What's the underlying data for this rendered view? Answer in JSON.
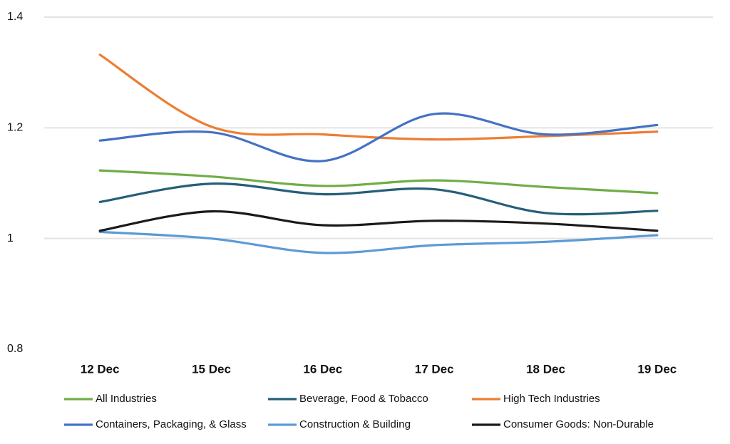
{
  "chart_data": {
    "type": "line",
    "categories": [
      "12 Dec",
      "15 Dec",
      "16 Dec",
      "17 Dec",
      "18 Dec",
      "19 Dec"
    ],
    "series": [
      {
        "name": "All Industries",
        "color": "#70ad47",
        "values": [
          1.123,
          1.112,
          1.095,
          1.105,
          1.093,
          1.082
        ]
      },
      {
        "name": "Beverage, Food & Tobacco",
        "color": "#255e79",
        "values": [
          1.066,
          1.099,
          1.08,
          1.089,
          1.046,
          1.05
        ]
      },
      {
        "name": "High Tech Industries",
        "color": "#ed7d31",
        "values": [
          1.332,
          1.202,
          1.188,
          1.179,
          1.185,
          1.193
        ]
      },
      {
        "name": "Containers, Packaging, & Glass",
        "color": "#4472c4",
        "values": [
          1.177,
          1.192,
          1.14,
          1.225,
          1.188,
          1.205
        ]
      },
      {
        "name": "Construction & Building",
        "color": "#5b9bd5",
        "values": [
          1.012,
          1.0,
          0.974,
          0.988,
          0.994,
          1.006
        ]
      },
      {
        "name": "Consumer Goods: Non-Durable",
        "color": "#1a1a1a",
        "values": [
          1.014,
          1.049,
          1.024,
          1.032,
          1.027,
          1.014
        ]
      }
    ],
    "ylim": [
      0.8,
      1.4
    ],
    "yticks": [
      0.8,
      1,
      1.2,
      1.4
    ],
    "grid": true,
    "legend": "bottom"
  }
}
